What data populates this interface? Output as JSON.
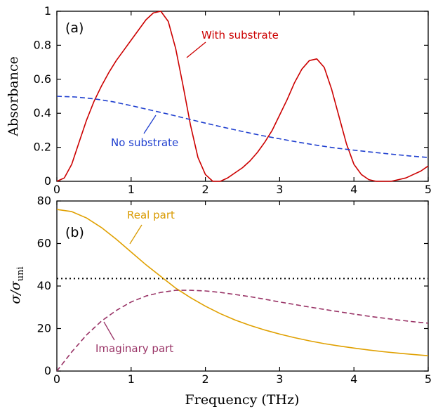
{
  "chart_data": [
    {
      "type": "line",
      "panel_label": "(a)",
      "ylabel": "Absorbance",
      "xlim": [
        0,
        5
      ],
      "ylim": [
        0,
        1
      ],
      "x_ticks": [
        "0",
        "1",
        "2",
        "3",
        "4",
        "5"
      ],
      "y_ticks": [
        "0",
        "0.2",
        "0.4",
        "0.6",
        "0.8",
        "1"
      ],
      "series": [
        {
          "name": "With substrate",
          "color": "#cc0000",
          "style": "solid",
          "x": [
            0,
            0.1,
            0.2,
            0.3,
            0.4,
            0.5,
            0.6,
            0.7,
            0.8,
            0.9,
            1.0,
            1.1,
            1.2,
            1.3,
            1.4,
            1.5,
            1.6,
            1.7,
            1.8,
            1.9,
            2.0,
            2.1,
            2.2,
            2.3,
            2.4,
            2.5,
            2.6,
            2.7,
            2.8,
            2.9,
            3.0,
            3.1,
            3.2,
            3.3,
            3.4,
            3.5,
            3.6,
            3.7,
            3.8,
            3.9,
            4.0,
            4.1,
            4.2,
            4.3,
            4.4,
            4.5,
            4.6,
            4.7,
            4.8,
            4.9,
            5.0
          ],
          "y": [
            0,
            0.02,
            0.1,
            0.23,
            0.36,
            0.47,
            0.56,
            0.64,
            0.71,
            0.77,
            0.83,
            0.89,
            0.95,
            0.99,
            1.0,
            0.94,
            0.78,
            0.56,
            0.33,
            0.14,
            0.04,
            0.0,
            0.0,
            0.02,
            0.05,
            0.08,
            0.12,
            0.17,
            0.23,
            0.3,
            0.39,
            0.48,
            0.58,
            0.66,
            0.71,
            0.72,
            0.67,
            0.54,
            0.38,
            0.22,
            0.1,
            0.04,
            0.01,
            0.0,
            0.0,
            0.0,
            0.01,
            0.02,
            0.04,
            0.06,
            0.09
          ]
        },
        {
          "name": "No substrate",
          "color": "#1f3fcf",
          "style": "dashed",
          "x": [
            0,
            0.25,
            0.5,
            0.75,
            1.0,
            1.25,
            1.5,
            1.75,
            2.0,
            2.25,
            2.5,
            2.75,
            3.0,
            3.25,
            3.5,
            3.75,
            4.0,
            4.25,
            4.5,
            4.75,
            5.0
          ],
          "y": [
            0.5,
            0.496,
            0.485,
            0.468,
            0.445,
            0.42,
            0.395,
            0.368,
            0.342,
            0.317,
            0.293,
            0.27,
            0.25,
            0.23,
            0.212,
            0.196,
            0.183,
            0.171,
            0.16,
            0.149,
            0.14
          ]
        }
      ],
      "annotations": [
        "With substrate",
        "No substrate"
      ]
    },
    {
      "type": "line",
      "panel_label": "(b)",
      "ylabel": "σ/σ",
      "ylabel_sub": "uni",
      "xlabel": "Frequency (THz)",
      "xlim": [
        0,
        5
      ],
      "ylim": [
        0,
        80
      ],
      "x_ticks": [
        "0",
        "1",
        "2",
        "3",
        "4",
        "5"
      ],
      "y_ticks": [
        "0",
        "20",
        "40",
        "60",
        "80"
      ],
      "reference_line": {
        "y": 43.5,
        "style": "dotted",
        "color": "#000000"
      },
      "series": [
        {
          "name": "Real part",
          "color": "#e0a000",
          "style": "solid",
          "x": [
            0,
            0.2,
            0.4,
            0.6,
            0.8,
            1.0,
            1.2,
            1.4,
            1.6,
            1.8,
            2.0,
            2.2,
            2.4,
            2.6,
            2.8,
            3.0,
            3.2,
            3.4,
            3.6,
            3.8,
            4.0,
            4.2,
            4.4,
            4.6,
            4.8,
            5.0
          ],
          "y": [
            76,
            75,
            72,
            67.5,
            62,
            56,
            50,
            44.5,
            39,
            34.5,
            30.5,
            27,
            24,
            21.5,
            19.3,
            17.4,
            15.7,
            14.2,
            12.9,
            11.8,
            10.8,
            9.9,
            9.1,
            8.4,
            7.8,
            7.2
          ]
        },
        {
          "name": "Imaginary part",
          "color": "#993366",
          "style": "dashed",
          "x": [
            0,
            0.2,
            0.4,
            0.6,
            0.8,
            1.0,
            1.2,
            1.4,
            1.6,
            1.8,
            2.0,
            2.2,
            2.4,
            2.6,
            2.8,
            3.0,
            3.2,
            3.4,
            3.6,
            3.8,
            4.0,
            4.2,
            4.4,
            4.6,
            4.8,
            5.0
          ],
          "y": [
            0,
            9,
            17,
            23.5,
            28.5,
            32.5,
            35.3,
            37,
            38,
            38,
            37.7,
            37,
            36,
            35,
            33.8,
            32.5,
            31.3,
            30.1,
            29,
            27.9,
            26.8,
            25.8,
            24.9,
            24,
            23.2,
            22.5
          ]
        }
      ],
      "annotations": [
        "Real part",
        "Imaginary part"
      ]
    }
  ]
}
